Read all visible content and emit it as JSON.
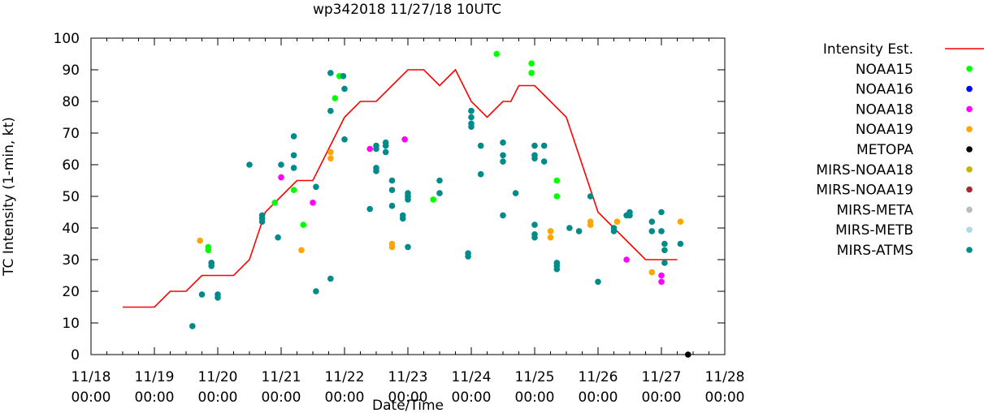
{
  "chart_data": {
    "type": "scatter",
    "title": "wp342018 11/27/18 10UTC",
    "xlabel": "Date/Time",
    "ylabel": "TC Intensity (1-min, kt)",
    "xlim": [
      0,
      10
    ],
    "ylim": [
      0,
      100
    ],
    "ytick_step": 10,
    "yticks": [
      "0",
      "10",
      "20",
      "30",
      "40",
      "50",
      "60",
      "70",
      "80",
      "90",
      "100"
    ],
    "xtick_labels": [
      {
        "date": "11/18",
        "time": "00:00"
      },
      {
        "date": "11/19",
        "time": "00:00"
      },
      {
        "date": "11/20",
        "time": "00:00"
      },
      {
        "date": "11/21",
        "time": "00:00"
      },
      {
        "date": "11/22",
        "time": "00:00"
      },
      {
        "date": "11/23",
        "time": "00:00"
      },
      {
        "date": "11/24",
        "time": "00:00"
      },
      {
        "date": "11/25",
        "time": "00:00"
      },
      {
        "date": "11/26",
        "time": "00:00"
      },
      {
        "date": "11/27",
        "time": "00:00"
      },
      {
        "date": "11/28",
        "time": "00:00"
      }
    ],
    "legend_position": "outside-right",
    "intensity_line": {
      "name": "Intensity Est.",
      "color": "#ff0000",
      "x": [
        0.5,
        1.0,
        1.25,
        1.5,
        1.75,
        2.0,
        2.25,
        2.5,
        2.75,
        3.0,
        3.25,
        3.5,
        3.75,
        4.0,
        4.25,
        4.5,
        4.75,
        5.0,
        5.25,
        5.5,
        5.75,
        6.0,
        6.25,
        6.5,
        6.625,
        6.75,
        7.0,
        7.25,
        7.5,
        7.75,
        8.0,
        8.25,
        8.5,
        8.75,
        9.0,
        9.25
      ],
      "y": [
        15,
        15,
        20,
        20,
        25,
        25,
        25,
        30,
        45,
        50,
        55,
        55,
        65,
        75,
        80,
        80,
        85,
        90,
        90,
        85,
        90,
        80,
        75,
        80,
        80,
        85,
        85,
        80,
        75,
        60,
        45,
        40,
        35,
        30,
        30,
        30
      ]
    },
    "series": [
      {
        "name": "NOAA15",
        "color": "#00ff00",
        "x": [
          1.85,
          1.85,
          2.9,
          3.2,
          3.35,
          3.85,
          3.92,
          5.4,
          6.4,
          6.95,
          6.95,
          7.35,
          7.35
        ],
        "y": [
          33,
          34,
          48,
          52,
          41,
          81,
          88,
          49,
          95,
          89,
          92,
          50,
          55
        ]
      },
      {
        "name": "NOAA16",
        "color": "#0000ff",
        "x": [],
        "y": []
      },
      {
        "name": "NOAA18",
        "color": "#ff00ff",
        "x": [
          1.9,
          3.0,
          3.5,
          4.4,
          4.95,
          8.45,
          9.0,
          9.0
        ],
        "y": [
          29,
          56,
          48,
          65,
          68,
          30,
          23,
          25
        ]
      },
      {
        "name": "NOAA19",
        "color": "#ffa500",
        "x": [
          1.72,
          3.32,
          3.78,
          3.78,
          4.75,
          4.75,
          7.25,
          7.25,
          7.88,
          7.88,
          8.3,
          8.85,
          9.3
        ],
        "y": [
          36,
          33,
          62,
          64,
          34,
          35,
          37,
          39,
          41,
          42,
          42,
          26,
          42
        ]
      },
      {
        "name": "METOPA",
        "color": "#000000",
        "x": [
          9.42
        ],
        "y": [
          0
        ]
      },
      {
        "name": "MIRS-NOAA18",
        "color": "#c8b400",
        "x": [],
        "y": []
      },
      {
        "name": "MIRS-NOAA19",
        "color": "#a52a2a",
        "x": [],
        "y": []
      },
      {
        "name": "MIRS-META",
        "color": "#bbbbbb",
        "x": [],
        "y": []
      },
      {
        "name": "MIRS-METB",
        "color": "#add8e6",
        "x": [],
        "y": []
      },
      {
        "name": "MIRS-ATMS",
        "color": "#008b8b",
        "x": [
          1.6,
          1.75,
          1.9,
          1.9,
          2.0,
          2.0,
          2.5,
          2.7,
          2.7,
          2.7,
          2.95,
          3.0,
          3.2,
          3.2,
          3.2,
          3.55,
          3.55,
          3.78,
          3.78,
          3.78,
          3.98,
          4.0,
          4.0,
          4.4,
          4.5,
          4.5,
          4.5,
          4.5,
          4.65,
          4.65,
          4.65,
          4.75,
          4.75,
          4.75,
          4.92,
          4.92,
          5.0,
          5.0,
          5.0,
          5.0,
          5.0,
          5.5,
          5.5,
          5.95,
          5.95,
          6.0,
          6.0,
          6.0,
          6.0,
          6.0,
          6.15,
          6.15,
          6.5,
          6.5,
          6.5,
          6.5,
          6.7,
          7.0,
          7.0,
          7.0,
          7.0,
          7.0,
          7.0,
          7.15,
          7.15,
          7.35,
          7.35,
          7.35,
          7.55,
          7.7,
          7.88,
          8.25,
          8.25,
          8.0,
          8.45,
          8.5,
          8.5,
          8.85,
          8.85,
          9.0,
          9.0,
          9.05,
          9.05,
          9.05,
          9.3
        ],
        "y": [
          9,
          19,
          28,
          29,
          18,
          19,
          60,
          42,
          43,
          44,
          37,
          60,
          59,
          63,
          69,
          20,
          53,
          24,
          77,
          89,
          88,
          68,
          84,
          46,
          58,
          59,
          65,
          66,
          64,
          66,
          67,
          47,
          52,
          55,
          43,
          44,
          34,
          49,
          50,
          51,
          50,
          51,
          55,
          31,
          32,
          72,
          73,
          75,
          77,
          77,
          57,
          66,
          44,
          61,
          63,
          67,
          51,
          37,
          38,
          41,
          62,
          63,
          66,
          61,
          66,
          27,
          28,
          29,
          40,
          39,
          50,
          39,
          40,
          23,
          44,
          44,
          45,
          39,
          42,
          39,
          45,
          29,
          33,
          35,
          35
        ]
      }
    ]
  }
}
